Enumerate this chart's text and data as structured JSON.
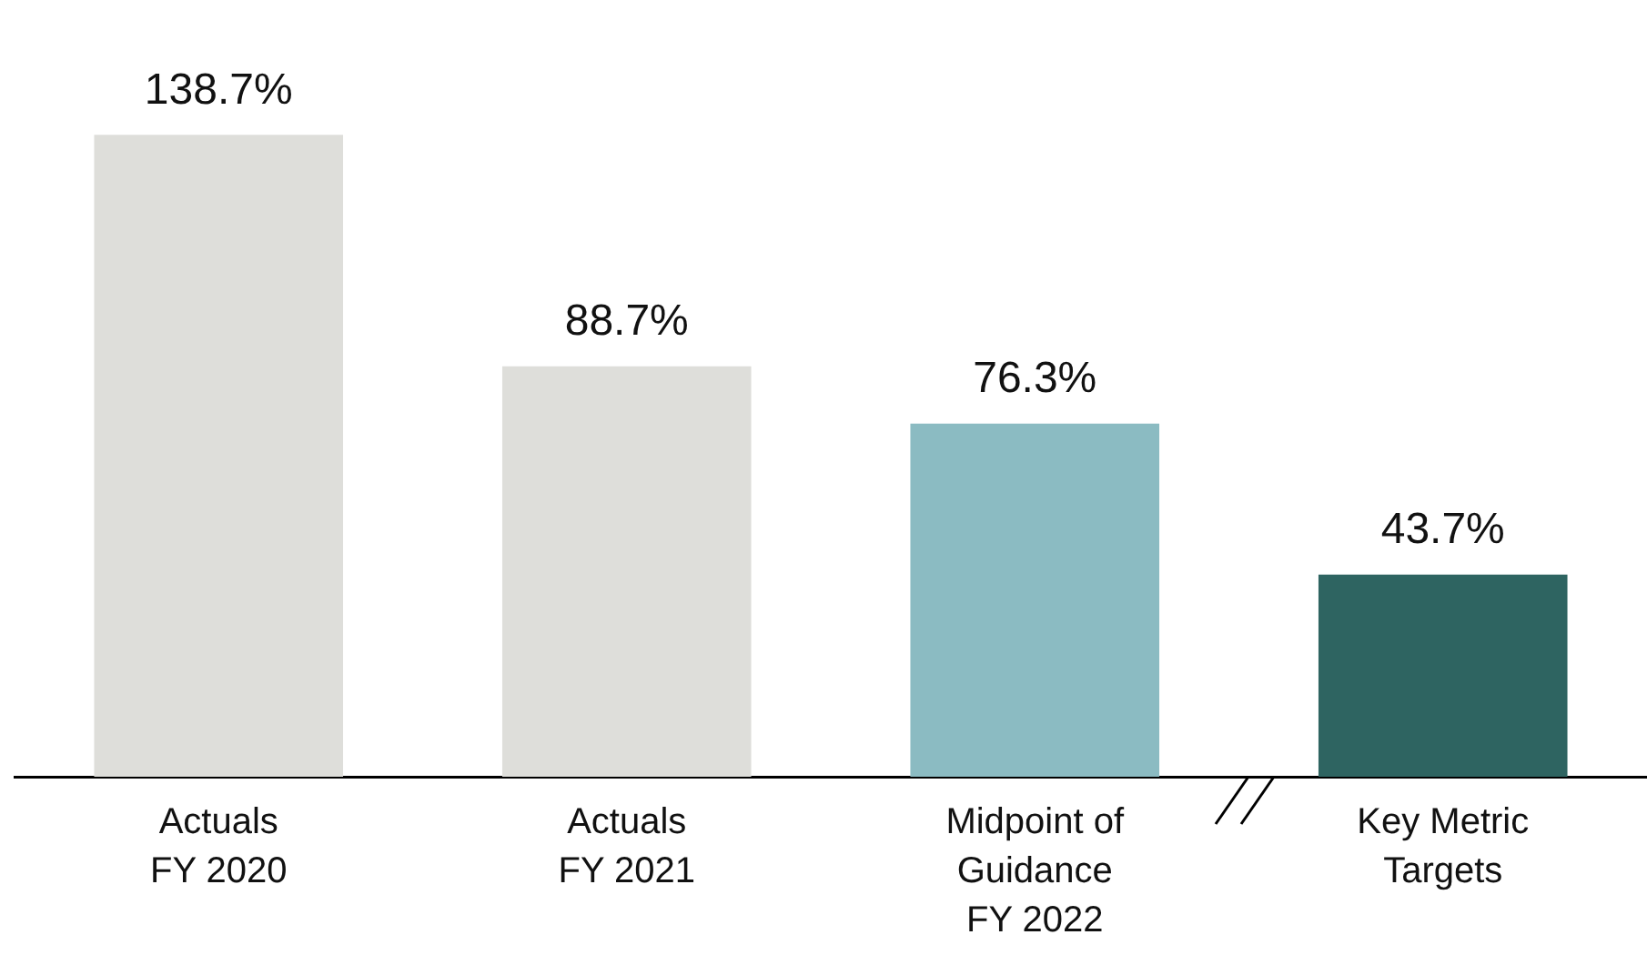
{
  "chart_data": {
    "type": "bar",
    "categories": [
      "Actuals\nFY 2020",
      "Actuals\nFY 2021",
      "Midpoint of\nGuidance\nFY 2022",
      "Key Metric\nTargets"
    ],
    "values": [
      138.7,
      88.7,
      76.3,
      43.7
    ],
    "colors": [
      "#dededa",
      "#dededa",
      "#8bbbc2",
      "#2e6461"
    ],
    "value_labels": [
      "138.7%",
      "88.7%",
      "76.3%",
      "43.7%"
    ],
    "tick_labels": "x",
    "grid": false,
    "legend": false
  }
}
